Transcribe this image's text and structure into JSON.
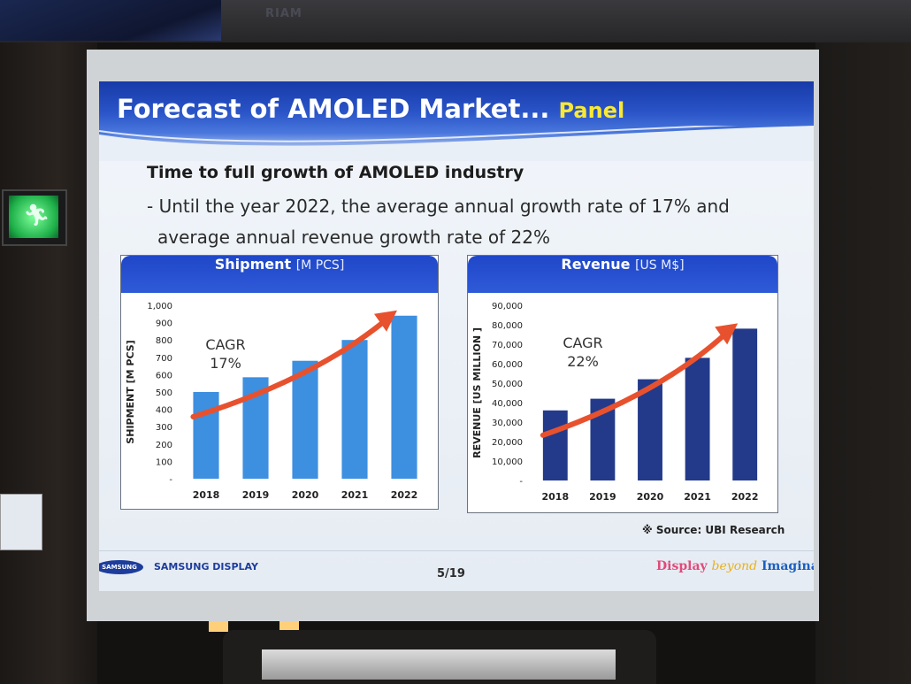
{
  "room": {
    "banner_logos": [
      "RIAM"
    ]
  },
  "slide": {
    "title": "Forecast of AMOLED Market...",
    "title_accent": "Panel",
    "subtitle": "Time to full growth of AMOLED industry",
    "bullet_line1": "- Until the year 2022, the average annual growth rate of 17% and",
    "bullet_line2": "average annual revenue growth rate of 22%",
    "source": "※ Source: UBI Research",
    "footer": {
      "logo": "SAMSUNG",
      "company": "SAMSUNG DISPLAY",
      "page": "5/19",
      "tagline_part1": "Display",
      "tagline_part2": "beyond",
      "tagline_part3": "Imagination"
    }
  },
  "colors": {
    "shipment_bar": "#3d8fe0",
    "revenue_bar": "#233a8a",
    "arrow": "#e8512e",
    "header_blue": "#1f47c8",
    "title_accent": "#f7e836"
  },
  "chart_data": [
    {
      "type": "bar",
      "title": "Shipment",
      "unit": "[M PCS]",
      "ylabel": "SHIPMENT [M PCS]",
      "categories": [
        "2018",
        "2019",
        "2020",
        "2021",
        "2022"
      ],
      "values": [
        500,
        585,
        680,
        800,
        940
      ],
      "ylim": [
        0,
        1000
      ],
      "yticks": [
        "-",
        "100",
        "200",
        "300",
        "400",
        "500",
        "600",
        "700",
        "800",
        "900",
        "1,000"
      ],
      "annotation": "CAGR",
      "annotation_value": "17%",
      "legend": "none",
      "grid": false
    },
    {
      "type": "bar",
      "title": "Revenue",
      "unit": "[US M$]",
      "ylabel": "REVENUE [US MILLION ]",
      "categories": [
        "2018",
        "2019",
        "2020",
        "2021",
        "2022"
      ],
      "values": [
        36000,
        42000,
        52000,
        63000,
        78000
      ],
      "ylim": [
        0,
        90000
      ],
      "yticks": [
        "-",
        "10,000",
        "20,000",
        "30,000",
        "40,000",
        "50,000",
        "60,000",
        "70,000",
        "80,000",
        "90,000"
      ],
      "annotation": "CAGR",
      "annotation_value": "22%",
      "legend": "none",
      "grid": false
    }
  ]
}
